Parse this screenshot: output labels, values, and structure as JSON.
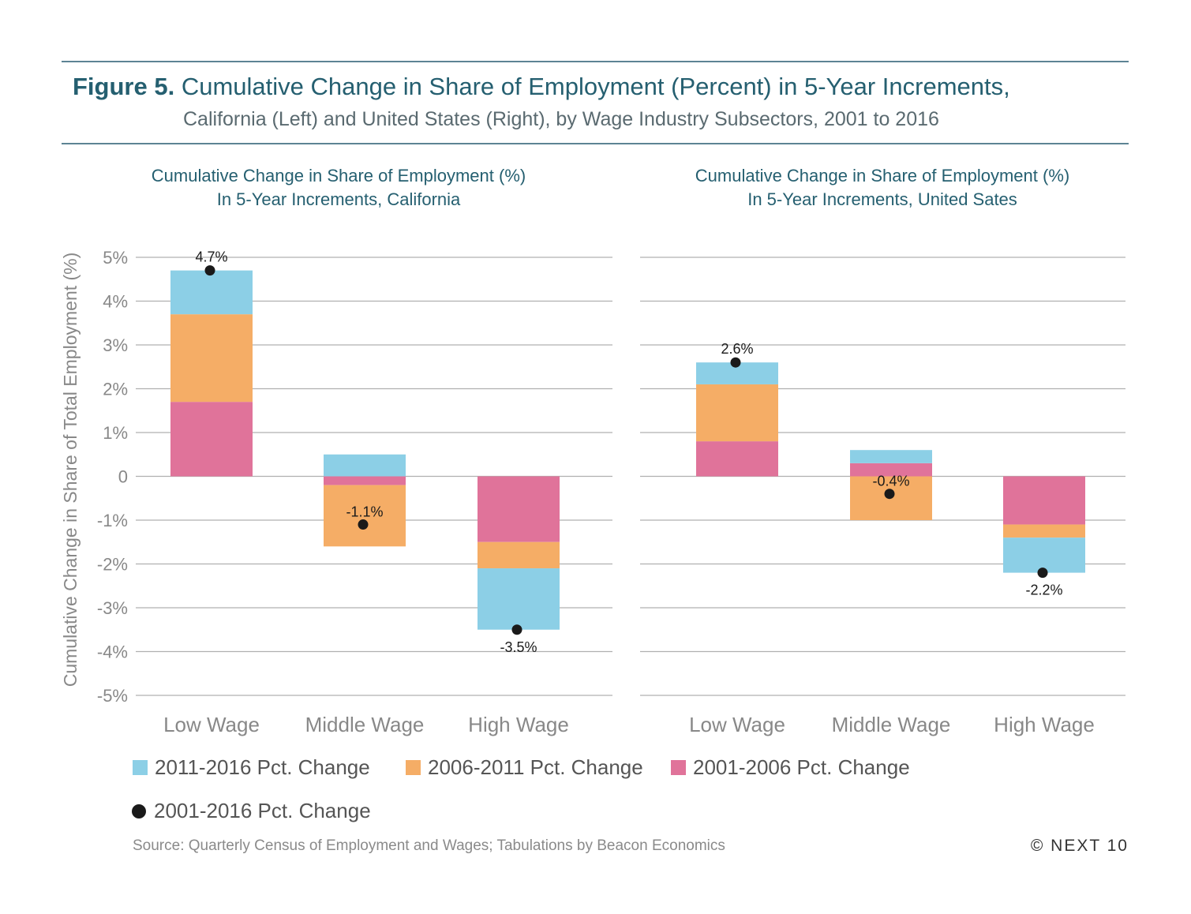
{
  "figure": {
    "label": "Figure 5.",
    "title": " Cumulative Change in Share of Employment (Percent) in 5-Year Increments,",
    "subtitle": "California (Left) and United States (Right), by Wage Industry Subsectors, 2001 to 2016"
  },
  "panels": {
    "left": {
      "title_line1": "Cumulative Change in Share of Employment (%)",
      "title_line2": "In 5-Year Increments, California"
    },
    "right": {
      "title_line1": "Cumulative Change in Share of Employment (%)",
      "title_line2": "In 5-Year Increments, United Sates"
    }
  },
  "legend": {
    "s2011": "2011-2016 Pct. Change",
    "s2006": "2006-2011 Pct. Change",
    "s2001": "2001-2006 Pct. Change",
    "total": "2001-2016 Pct. Change"
  },
  "source": "Source: Quarterly Census of Employment and Wages; Tabulations by Beacon Economics",
  "copyright": "© NEXT 10",
  "colors": {
    "s2011": "#8ccfe6",
    "s2006": "#f5ad66",
    "s2001": "#e0739a",
    "dot": "#1a1a1a",
    "grid": "#b0b0b0",
    "axis_text": "#888888"
  },
  "chart_data": [
    {
      "type": "bar",
      "stacked": true,
      "title": "Cumulative Change in Share of Employment (%) In 5-Year Increments, California",
      "ylabel": "Cumulative Change in  Share of Total Employment (%)",
      "ylim": [
        -5,
        5
      ],
      "yticks": [
        5,
        4,
        3,
        2,
        1,
        0,
        -1,
        -2,
        -3,
        -4,
        -5
      ],
      "ytick_labels": [
        "5%",
        "4%",
        "3%",
        "2%",
        "1%",
        "0",
        "-1%",
        "-2%",
        "-3%",
        "-4%",
        "-5%"
      ],
      "categories": [
        "Low Wage",
        "Middle Wage",
        "High Wage"
      ],
      "series": [
        {
          "name": "2001-2006 Pct. Change",
          "key": "s2001",
          "values": [
            1.7,
            -0.2,
            -1.5
          ]
        },
        {
          "name": "2006-2011 Pct. Change",
          "key": "s2006",
          "values": [
            2.0,
            -1.4,
            -0.6
          ]
        },
        {
          "name": "2011-2016 Pct. Change",
          "key": "s2011",
          "values": [
            1.0,
            0.5,
            -1.4
          ]
        }
      ],
      "total": {
        "name": "2001-2016 Pct. Change",
        "values": [
          4.7,
          -1.1,
          -3.5
        ],
        "labels": [
          "4.7%",
          "-1.1%",
          "-3.5%"
        ]
      },
      "grid": true
    },
    {
      "type": "bar",
      "stacked": true,
      "title": "Cumulative Change in Share of Employment (%) In 5-Year Increments, United Sates",
      "ylim": [
        -5,
        5
      ],
      "categories": [
        "Low Wage",
        "Middle Wage",
        "High Wage"
      ],
      "series": [
        {
          "name": "2001-2006 Pct. Change",
          "key": "s2001",
          "values": [
            0.8,
            0.3,
            -1.1
          ]
        },
        {
          "name": "2006-2011 Pct. Change",
          "key": "s2006",
          "values": [
            1.3,
            -1.0,
            -0.3
          ]
        },
        {
          "name": "2011-2016 Pct. Change",
          "key": "s2011",
          "values": [
            0.5,
            0.3,
            -0.8
          ]
        }
      ],
      "total": {
        "name": "2001-2016 Pct. Change",
        "values": [
          2.6,
          -0.4,
          -2.2
        ],
        "labels": [
          "2.6%",
          "-0.4%",
          "-2.2%"
        ]
      },
      "grid": true
    }
  ]
}
